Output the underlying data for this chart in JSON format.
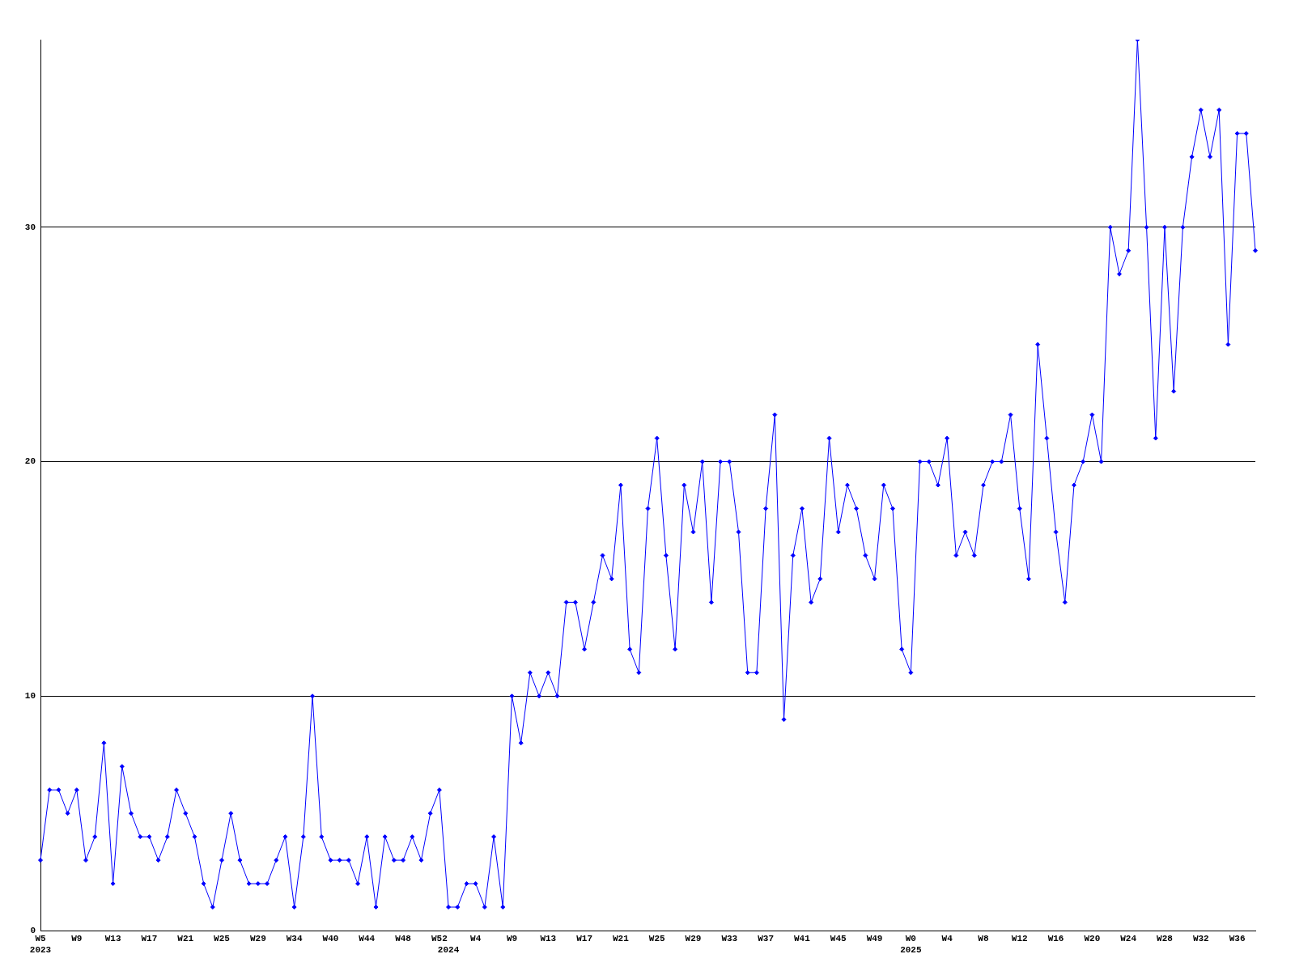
{
  "chart_data": {
    "type": "line",
    "categories": [
      "W5\n2023",
      null,
      null,
      null,
      "W9",
      null,
      null,
      null,
      "W13",
      null,
      null,
      null,
      "W17",
      null,
      null,
      null,
      "W21",
      null,
      null,
      null,
      "W25",
      null,
      null,
      null,
      "W29",
      null,
      null,
      null,
      "W34",
      null,
      null,
      null,
      "W40",
      null,
      null,
      null,
      "W44",
      null,
      null,
      null,
      "W48",
      null,
      null,
      null,
      "W52",
      "\n2024",
      null,
      null,
      "W4",
      null,
      null,
      null,
      "W9",
      null,
      null,
      null,
      "W13",
      null,
      null,
      null,
      "W17",
      null,
      null,
      null,
      "W21",
      null,
      null,
      null,
      "W25",
      null,
      null,
      null,
      "W29",
      null,
      null,
      null,
      "W33",
      null,
      null,
      null,
      "W37",
      null,
      null,
      null,
      "W41",
      null,
      null,
      null,
      "W45",
      null,
      null,
      null,
      "W49",
      null,
      null,
      null,
      "W0\n2025",
      null,
      null,
      null,
      "W4",
      null,
      null,
      null,
      "W8",
      null,
      null,
      null,
      "W12",
      null,
      null,
      null,
      "W16",
      null,
      null,
      null,
      "W20",
      null,
      null,
      null,
      "W24",
      null,
      null,
      null,
      "W28",
      null,
      null,
      null,
      "W32",
      null,
      null,
      null,
      "W36",
      null,
      null
    ],
    "values": [
      3,
      6,
      6,
      5,
      6,
      3,
      4,
      8,
      2,
      7,
      5,
      4,
      4,
      3,
      4,
      6,
      5,
      4,
      2,
      1,
      3,
      5,
      3,
      2,
      2,
      2,
      3,
      4,
      1,
      4,
      10,
      4,
      3,
      3,
      3,
      2,
      4,
      1,
      4,
      3,
      3,
      4,
      3,
      5,
      6,
      1,
      1,
      2,
      2,
      1,
      4,
      1,
      10,
      8,
      11,
      10,
      11,
      10,
      14,
      14,
      12,
      14,
      16,
      15,
      19,
      12,
      11,
      18,
      21,
      16,
      12,
      19,
      17,
      20,
      14,
      20,
      20,
      17,
      11,
      11,
      18,
      22,
      9,
      16,
      18,
      14,
      15,
      21,
      17,
      19,
      18,
      16,
      15,
      19,
      18,
      12,
      11,
      20,
      20,
      19,
      21,
      16,
      17,
      16,
      19,
      20,
      20,
      22,
      18,
      15,
      25,
      21,
      17,
      14,
      19,
      20,
      22,
      20,
      30,
      28,
      29,
      38,
      30,
      21,
      30,
      23,
      30,
      33,
      35,
      33,
      35,
      25,
      34,
      34,
      29
    ],
    "color": "#0000ff",
    "ylim": [
      0,
      38
    ],
    "yticks": [
      0,
      10,
      20,
      30
    ],
    "grid": "y",
    "marker": "diamond"
  }
}
